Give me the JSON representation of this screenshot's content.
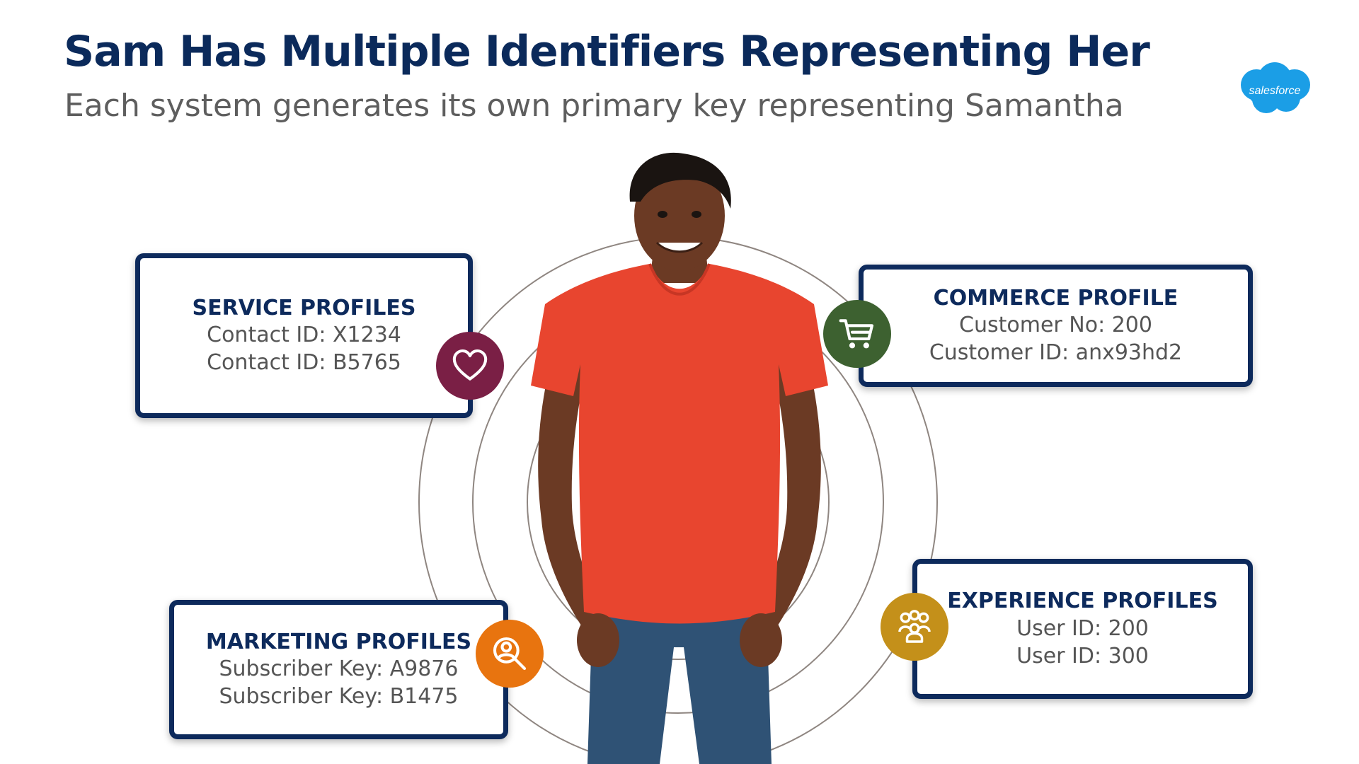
{
  "header": {
    "title": "Sam Has Multiple Identifiers Representing Her",
    "subtitle": "Each system generates its own primary key representing Samantha"
  },
  "logo": {
    "text": "salesforce",
    "color": "#1b9ee6"
  },
  "cards": {
    "service": {
      "title": "SERVICE PROFILES",
      "lines": [
        "Contact ID: X1234",
        "Contact ID: B5765"
      ],
      "icon": "heart-icon",
      "color": "#7a1f45"
    },
    "commerce": {
      "title": "COMMERCE PROFILE",
      "lines": [
        "Customer No: 200",
        "Customer ID: anx93hd2"
      ],
      "icon": "shopping-cart-icon",
      "color": "#3d6130"
    },
    "marketing": {
      "title": "MARKETING PROFILES",
      "lines": [
        "Subscriber Key: A9876",
        "Subscriber Key: B1475"
      ],
      "icon": "person-search-icon",
      "color": "#e8740f"
    },
    "experience": {
      "title": "EXPERIENCE PROFILES",
      "lines": [
        "User ID: 200",
        "User ID: 300"
      ],
      "icon": "people-group-icon",
      "color": "#c4901a"
    }
  },
  "colors": {
    "title": "#0b2a5b",
    "card_border": "#0d2a5c",
    "ring": "#8f8681"
  }
}
